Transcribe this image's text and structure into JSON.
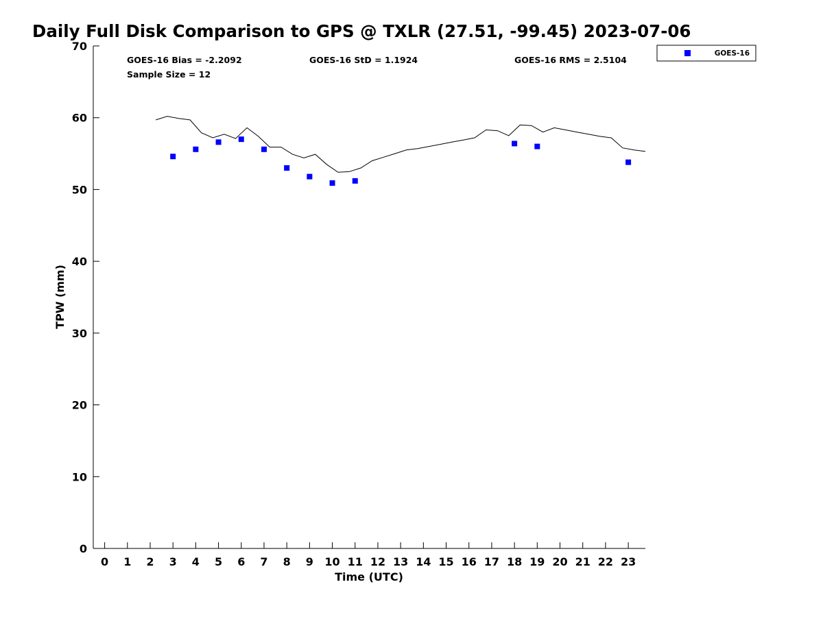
{
  "chart_data": {
    "type": "scatter",
    "title": "Daily Full Disk Comparison to GPS @ TXLR (27.51, -99.45) 2023-07-06",
    "xlabel": "Time (UTC)",
    "ylabel": "TPW (mm)",
    "xlim": [
      -0.5,
      23.75
    ],
    "ylim": [
      0,
      70
    ],
    "x_ticks": [
      0,
      1,
      2,
      3,
      4,
      5,
      6,
      7,
      8,
      9,
      10,
      11,
      12,
      13,
      14,
      15,
      16,
      17,
      18,
      19,
      20,
      21,
      22,
      23
    ],
    "y_ticks": [
      0,
      10,
      20,
      30,
      40,
      50,
      60,
      70
    ],
    "grid": false,
    "legend_position": "outside-top-right",
    "stats": {
      "bias": "GOES-16 Bias = -2.2092",
      "std": "GOES-16 StD = 1.1924",
      "rms": "GOES-16 RMS = 2.5104",
      "sample_size": "Sample Size = 12"
    },
    "series": [
      {
        "name": "GOES-16",
        "kind": "scatter",
        "marker": "square",
        "color": "#0000ff",
        "x": [
          3,
          4,
          5,
          6,
          7,
          8,
          9,
          10,
          11,
          18,
          19,
          23
        ],
        "y": [
          54.6,
          55.6,
          56.6,
          57.0,
          55.6,
          53.0,
          51.8,
          50.9,
          51.2,
          56.4,
          56.0,
          53.8
        ]
      },
      {
        "kind": "line",
        "color": "#000000",
        "x": [
          2.25,
          2.75,
          3.25,
          3.75,
          4.25,
          4.75,
          5.25,
          5.75,
          6.25,
          6.75,
          7.25,
          7.75,
          8.25,
          8.75,
          9.25,
          9.75,
          10.25,
          10.75,
          11.25,
          11.75,
          12.25,
          12.75,
          13.25,
          13.75,
          14.25,
          14.75,
          15.25,
          15.75,
          16.25,
          16.75,
          17.25,
          17.75,
          18.25,
          18.75,
          19.25,
          19.75,
          20.25,
          20.75,
          21.25,
          21.75,
          22.25,
          22.75,
          23.25,
          23.75
        ],
        "y": [
          59.7,
          60.2,
          59.9,
          59.7,
          57.9,
          57.2,
          57.7,
          57.1,
          58.6,
          57.4,
          55.9,
          55.9,
          54.9,
          54.4,
          54.9,
          53.5,
          52.4,
          52.5,
          53.0,
          54.0,
          54.5,
          55.0,
          55.5,
          55.7,
          56.0,
          56.3,
          56.6,
          56.9,
          57.2,
          58.3,
          58.2,
          57.5,
          59.0,
          58.9,
          58.0,
          58.6,
          58.3,
          58.0,
          57.7,
          57.4,
          57.2,
          55.8,
          55.5,
          55.3
        ]
      }
    ]
  }
}
